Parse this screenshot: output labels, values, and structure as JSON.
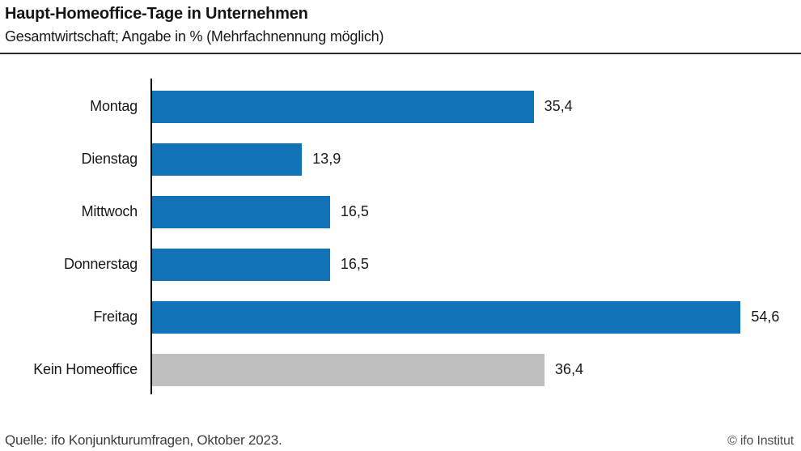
{
  "header": {
    "title": "Haupt-Homeoffice-Tage in Unternehmen",
    "subtitle": "Gesamtwirtschaft; Angabe in % (Mehrfachnennung möglich)"
  },
  "chart_data": {
    "type": "bar",
    "orientation": "horizontal",
    "title": "Haupt-Homeoffice-Tage in Unternehmen",
    "subtitle": "Gesamtwirtschaft; Angabe in % (Mehrfachnennung möglich)",
    "categories": [
      "Montag",
      "Dienstag",
      "Mittwoch",
      "Donnerstag",
      "Freitag",
      "Kein Homeoffice"
    ],
    "values": [
      35.4,
      13.9,
      16.5,
      16.5,
      54.6,
      36.4
    ],
    "value_labels": [
      "35,4",
      "13,9",
      "16,5",
      "16,5",
      "54,6",
      "36,4"
    ],
    "bar_colors": [
      "#1272b8",
      "#1272b8",
      "#1272b8",
      "#1272b8",
      "#1272b8",
      "#bfbfbf"
    ],
    "unit": "%",
    "xlabel": "",
    "ylabel": "",
    "xlim": [
      0,
      60.2
    ],
    "grid": false,
    "legend": false
  },
  "footer": {
    "source": "Quelle: ifo Konjunkturumfragen, Oktober 2023.",
    "copyright": "© ifo Institut"
  },
  "colors": {
    "bar_blue": "#1272b8",
    "bar_gray": "#bfbfbf",
    "axis": "#000000",
    "divider": "#2b2b2b"
  }
}
